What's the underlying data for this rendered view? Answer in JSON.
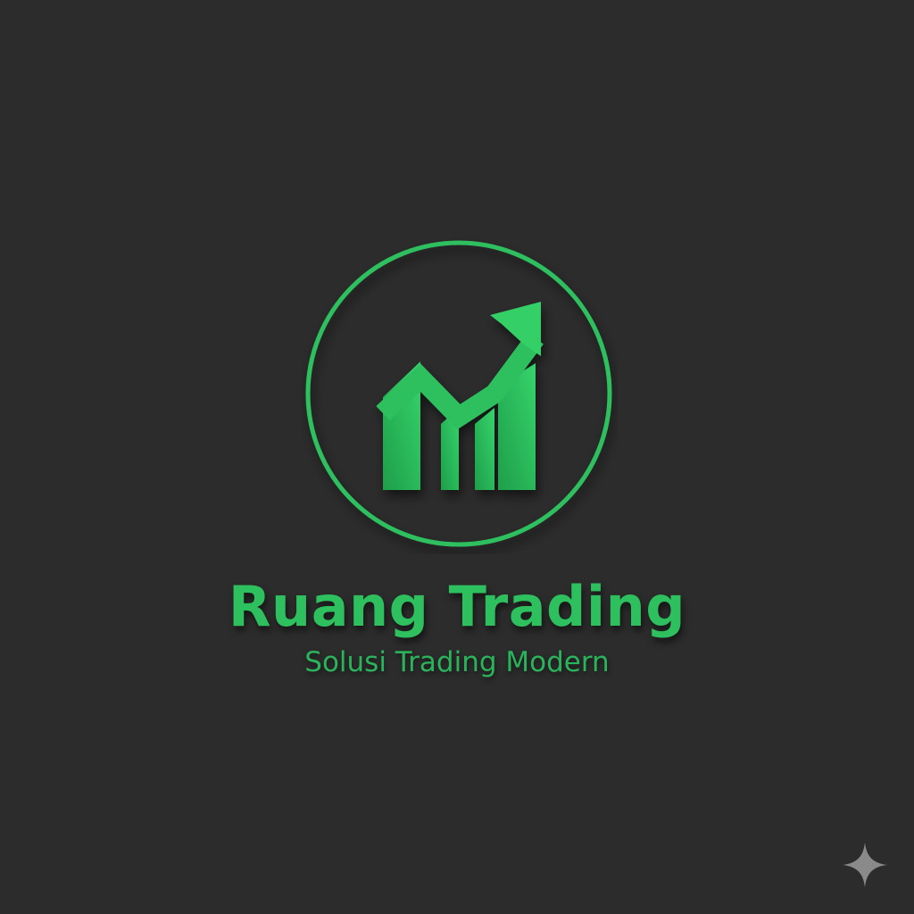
{
  "brand": {
    "name": "Ruang Trading",
    "tagline": "Solusi Trading Modern"
  },
  "logo": {
    "icon": "rising-chart-arrow-icon",
    "accent_color": "#2ec05f",
    "background_color": "#2c2c2c"
  },
  "corner_mark": {
    "icon": "sparkle-icon",
    "color": "#8a8a8a"
  }
}
